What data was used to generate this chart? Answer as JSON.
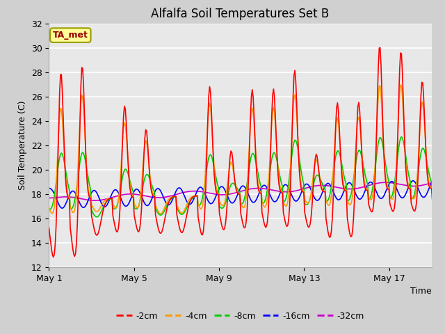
{
  "title": "Alfalfa Soil Temperatures Set B",
  "xlabel": "Time",
  "ylabel": "Soil Temperature (C)",
  "ylim": [
    12,
    32
  ],
  "yticks": [
    12,
    14,
    16,
    18,
    20,
    22,
    24,
    26,
    28,
    30,
    32
  ],
  "xtick_labels": [
    "May 1",
    "May 5",
    "May 9",
    "May 13",
    "May 17"
  ],
  "xtick_positions": [
    0,
    4,
    8,
    12,
    16
  ],
  "fig_bg_color": "#d0d0d0",
  "plot_bg_color": "#e8e8e8",
  "grid_color": "#ffffff",
  "colors": {
    "-2cm": "#ff0000",
    "-4cm": "#ff9900",
    "-8cm": "#00cc00",
    "-16cm": "#0000ff",
    "-32cm": "#cc00cc"
  },
  "linewidth": 1.2,
  "annotation_text": "TA_met",
  "annotation_color": "#990000",
  "annotation_bg": "#ffff99",
  "annotation_border": "#999900",
  "num_days": 19
}
